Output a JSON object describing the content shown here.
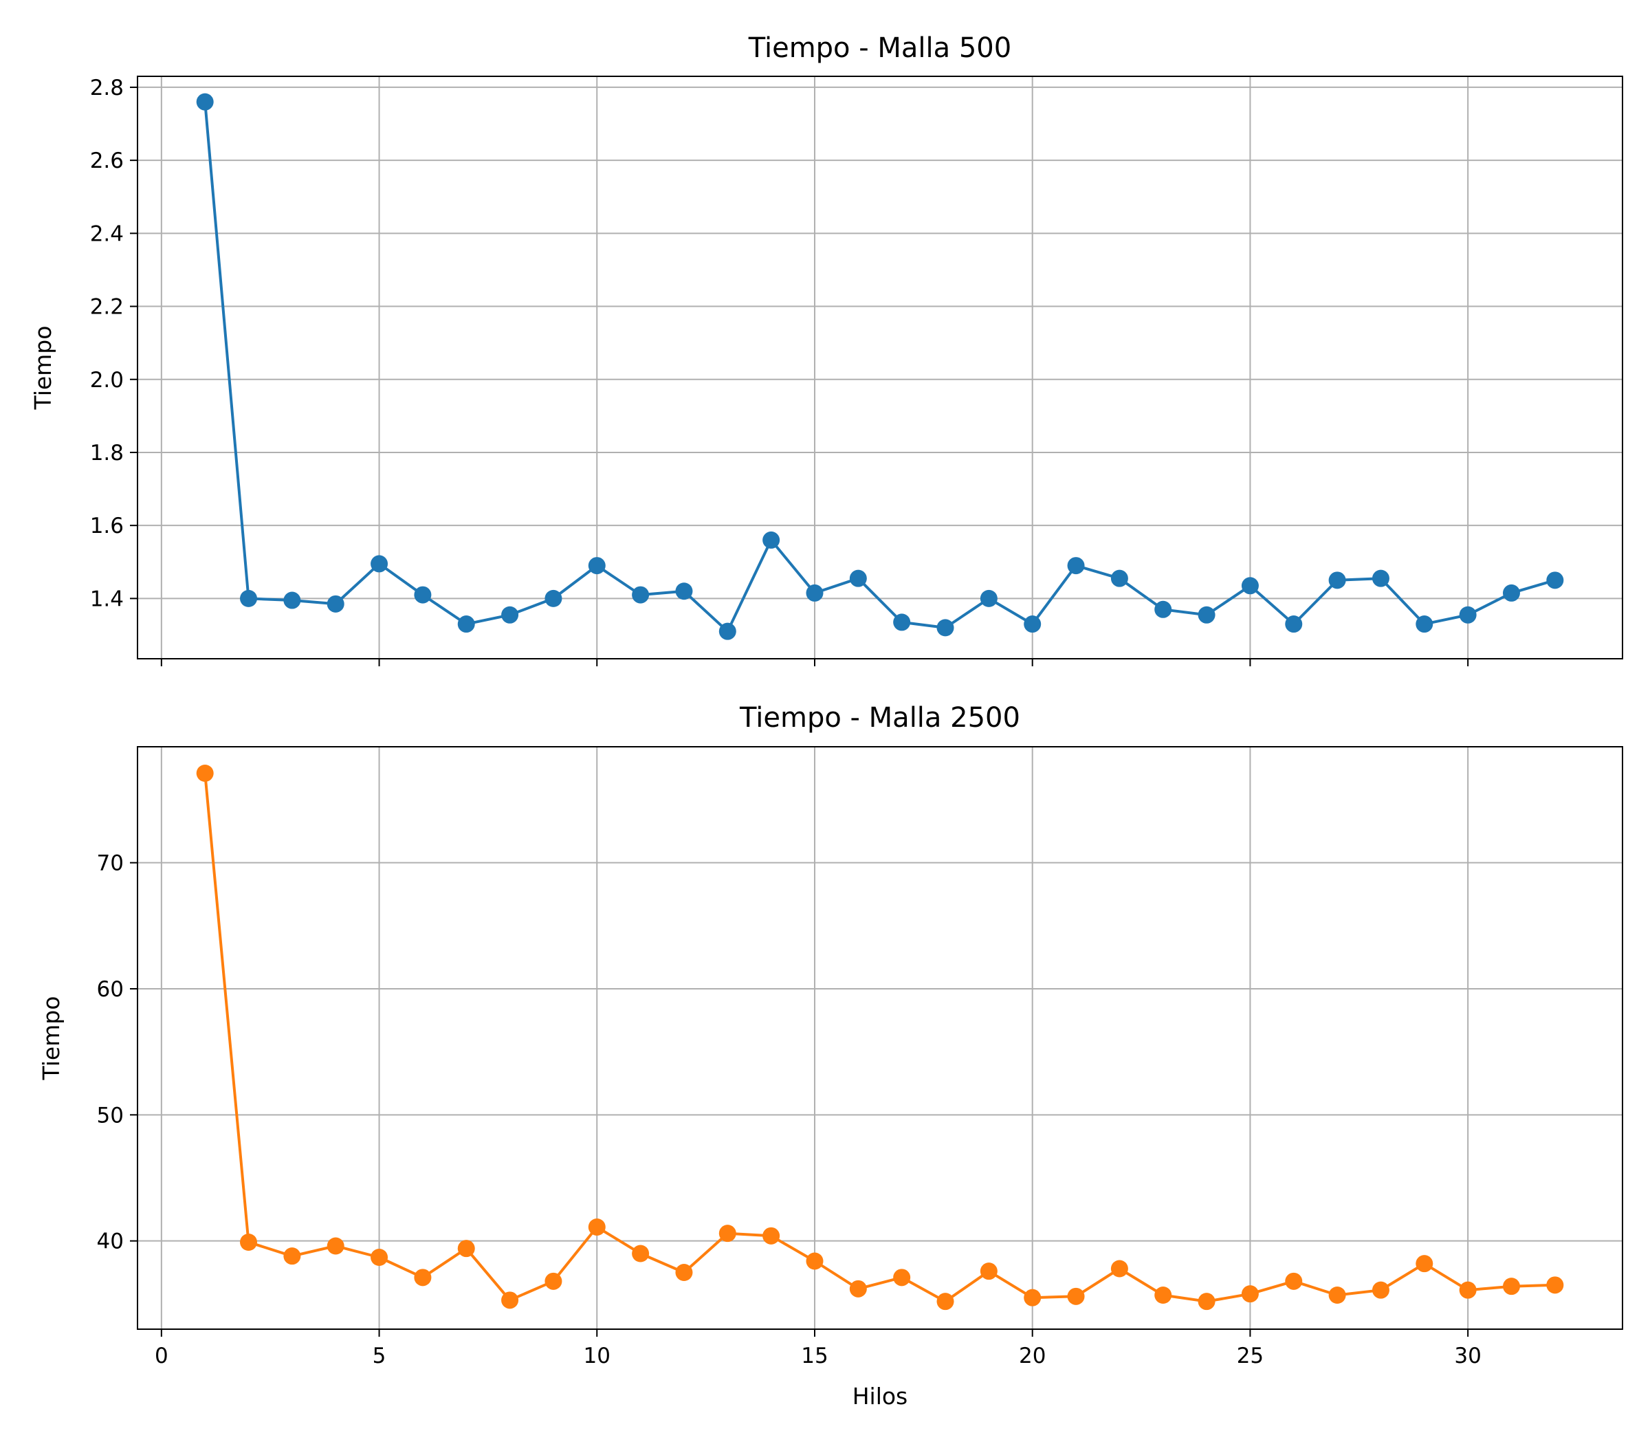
{
  "chart_data": [
    {
      "type": "line",
      "title": "Tiempo - Malla 500",
      "xlabel": "",
      "ylabel": "Tiempo",
      "xlim": [
        -0.55,
        33.55
      ],
      "ylim": [
        1.235,
        2.83
      ],
      "xticks": [
        0,
        5,
        10,
        15,
        20,
        25,
        30
      ],
      "show_xtick_labels": false,
      "yticks": [
        1.4,
        1.6,
        1.8,
        2.0,
        2.2,
        2.4,
        2.6,
        2.8
      ],
      "ytick_labels": [
        "1.4",
        "1.6",
        "1.8",
        "2.0",
        "2.2",
        "2.4",
        "2.6",
        "2.8"
      ],
      "grid": true,
      "series": [
        {
          "color": "#1f77b4",
          "marker": "circle",
          "x": [
            1,
            2,
            3,
            4,
            5,
            6,
            7,
            8,
            9,
            10,
            11,
            12,
            13,
            14,
            15,
            16,
            17,
            18,
            19,
            20,
            21,
            22,
            23,
            24,
            25,
            26,
            27,
            28,
            29,
            30,
            31,
            32
          ],
          "y": [
            2.76,
            1.4,
            1.395,
            1.385,
            1.495,
            1.41,
            1.33,
            1.355,
            1.4,
            1.49,
            1.41,
            1.42,
            1.31,
            1.56,
            1.415,
            1.455,
            1.335,
            1.32,
            1.4,
            1.33,
            1.49,
            1.455,
            1.37,
            1.355,
            1.435,
            1.33,
            1.45,
            1.455,
            1.33,
            1.355,
            1.415,
            1.45
          ]
        }
      ]
    },
    {
      "type": "line",
      "title": "Tiempo - Malla 2500",
      "xlabel": "Hilos",
      "ylabel": "Tiempo",
      "xlim": [
        -0.55,
        33.55
      ],
      "ylim": [
        33.0,
        79.2
      ],
      "xticks": [
        0,
        5,
        10,
        15,
        20,
        25,
        30
      ],
      "show_xtick_labels": true,
      "xtick_labels": [
        "0",
        "5",
        "10",
        "15",
        "20",
        "25",
        "30"
      ],
      "yticks": [
        40,
        50,
        60,
        70
      ],
      "ytick_labels": [
        "40",
        "50",
        "60",
        "70"
      ],
      "grid": true,
      "series": [
        {
          "color": "#ff7f0e",
          "marker": "circle",
          "x": [
            1,
            2,
            3,
            4,
            5,
            6,
            7,
            8,
            9,
            10,
            11,
            12,
            13,
            14,
            15,
            16,
            17,
            18,
            19,
            20,
            21,
            22,
            23,
            24,
            25,
            26,
            27,
            28,
            29,
            30,
            31,
            32
          ],
          "y": [
            77.1,
            39.9,
            38.8,
            39.6,
            38.7,
            37.1,
            39.4,
            35.3,
            36.8,
            41.1,
            39.0,
            37.5,
            40.6,
            40.4,
            38.4,
            36.2,
            37.1,
            35.2,
            37.6,
            35.5,
            35.6,
            37.8,
            35.7,
            35.2,
            35.8,
            36.8,
            35.7,
            36.1,
            38.2,
            36.1,
            36.4,
            36.5
          ]
        }
      ]
    }
  ]
}
